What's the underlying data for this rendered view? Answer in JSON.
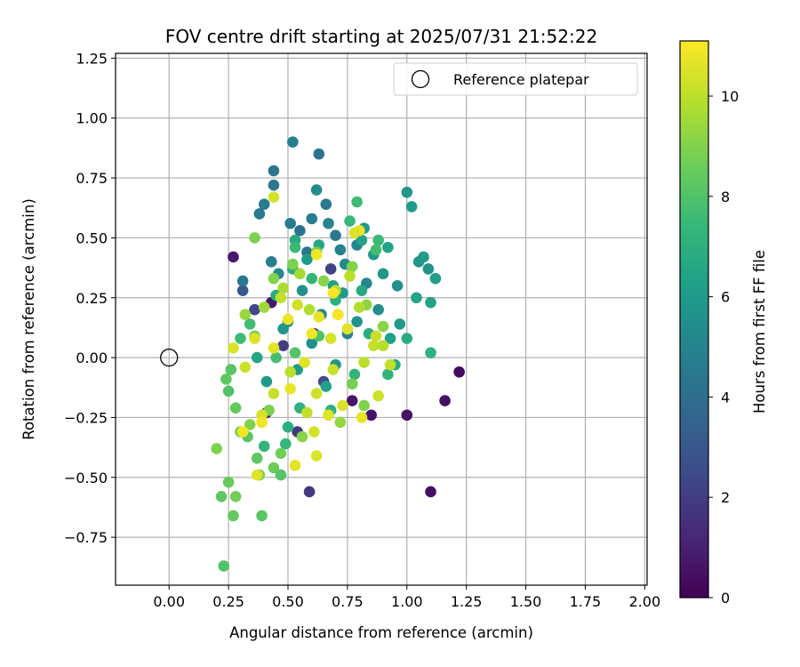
{
  "chart_data": {
    "type": "scatter",
    "title": "FOV centre drift starting at 2025/07/31 21:52:22",
    "xlabel": "Angular distance from reference (arcmin)",
    "ylabel": "Rotation from reference (arcmin)",
    "xlim": [
      -0.225,
      2.01
    ],
    "ylim": [
      -0.95,
      1.27
    ],
    "xticks": [
      0.0,
      0.25,
      0.5,
      0.75,
      1.0,
      1.25,
      1.5,
      1.75,
      2.0
    ],
    "xtick_labels": [
      "0.00",
      "0.25",
      "0.50",
      "0.75",
      "1.00",
      "1.25",
      "1.50",
      "1.75",
      "2.00"
    ],
    "yticks": [
      -0.75,
      -0.5,
      -0.25,
      0.0,
      0.25,
      0.5,
      0.75,
      1.0,
      1.25
    ],
    "ytick_labels": [
      "−0.75",
      "−0.50",
      "−0.25",
      "0.00",
      "0.25",
      "0.50",
      "0.75",
      "1.00",
      "1.25"
    ],
    "grid": true,
    "legend": {
      "position": "top-right",
      "entries": [
        "Reference platepar"
      ]
    },
    "reference_point": {
      "x": 0.0,
      "y": 0.0,
      "label": "Reference platepar"
    },
    "colorbar": {
      "label": "Hours from first FF file",
      "colormap": "viridis",
      "range": [
        0,
        11.1
      ],
      "ticks": [
        0,
        2,
        4,
        6,
        8,
        10
      ],
      "tick_labels": [
        "0",
        "2",
        "4",
        "6",
        "8",
        "10"
      ]
    },
    "points": [
      [
        0.27,
        0.42,
        0.8
      ],
      [
        0.41,
        -0.23,
        0.8
      ],
      [
        0.43,
        0.23,
        0.7
      ],
      [
        0.61,
        0.1,
        0.9
      ],
      [
        0.77,
        -0.18,
        0.7
      ],
      [
        0.85,
        -0.24,
        0.6
      ],
      [
        1.0,
        -0.24,
        0.6
      ],
      [
        1.1,
        -0.56,
        0.4
      ],
      [
        1.16,
        -0.18,
        0.5
      ],
      [
        1.22,
        -0.06,
        0.3
      ],
      [
        0.59,
        -0.56,
        1.9
      ],
      [
        0.54,
        -0.31,
        1.8
      ],
      [
        0.68,
        0.37,
        2.2
      ],
      [
        0.36,
        0.2,
        2.4
      ],
      [
        0.48,
        0.05,
        2.0
      ],
      [
        0.65,
        -0.1,
        2.5
      ],
      [
        0.31,
        0.28,
        3.1
      ],
      [
        0.63,
        0.85,
        4.2
      ],
      [
        0.44,
        0.78,
        4.3
      ],
      [
        0.44,
        0.72,
        4.4
      ],
      [
        0.4,
        0.64,
        4.6
      ],
      [
        0.38,
        0.6,
        4.5
      ],
      [
        0.52,
        0.9,
        4.8
      ],
      [
        0.6,
        0.58,
        4.7
      ],
      [
        0.51,
        0.56,
        4.6
      ],
      [
        0.66,
        0.64,
        4.5
      ],
      [
        0.55,
        0.53,
        4.1
      ],
      [
        0.7,
        0.51,
        4.4
      ],
      [
        0.62,
        0.7,
        5.4
      ],
      [
        0.43,
        0.4,
        4.8
      ],
      [
        0.58,
        0.44,
        4.3
      ],
      [
        0.72,
        0.45,
        4.9
      ],
      [
        0.31,
        0.32,
        4.5
      ],
      [
        0.46,
        0.35,
        5.2
      ],
      [
        0.67,
        0.56,
        5.0
      ],
      [
        0.5,
        0.15,
        5.1
      ],
      [
        0.56,
        0.28,
        5.6
      ],
      [
        0.74,
        0.39,
        5.3
      ],
      [
        0.79,
        0.47,
        5.0
      ],
      [
        0.83,
        0.31,
        5.2
      ],
      [
        0.64,
        0.18,
        4.9
      ],
      [
        0.75,
        0.1,
        5.0
      ],
      [
        0.88,
        0.2,
        5.5
      ],
      [
        0.9,
        0.35,
        5.8
      ],
      [
        0.96,
        0.3,
        5.6
      ],
      [
        1.0,
        0.69,
        5.9
      ],
      [
        1.02,
        0.63,
        6.0
      ],
      [
        1.05,
        0.4,
        5.8
      ],
      [
        1.07,
        0.42,
        6.1
      ],
      [
        1.09,
        0.37,
        5.7
      ],
      [
        1.12,
        0.33,
        6.2
      ],
      [
        0.92,
        0.46,
        6.4
      ],
      [
        0.86,
        0.43,
        5.9
      ],
      [
        0.82,
        0.54,
        6.1
      ],
      [
        0.81,
        0.49,
        6.3
      ],
      [
        0.97,
        0.14,
        5.9
      ],
      [
        0.93,
        0.08,
        6.2
      ],
      [
        1.04,
        0.25,
        6.5
      ],
      [
        1.1,
        0.23,
        6.4
      ],
      [
        1.0,
        0.08,
        6.8
      ],
      [
        0.73,
        0.27,
        6.0
      ],
      [
        0.79,
        0.15,
        5.7
      ],
      [
        0.69,
        0.3,
        6.3
      ],
      [
        0.53,
        0.49,
        6.6
      ],
      [
        0.58,
        0.41,
        6.1
      ],
      [
        0.48,
        0.12,
        5.9
      ],
      [
        0.6,
        0.06,
        5.6
      ],
      [
        0.7,
        -0.03,
        5.8
      ],
      [
        0.66,
        -0.12,
        6.2
      ],
      [
        0.54,
        -0.05,
        6.0
      ],
      [
        0.41,
        -0.1,
        6.1
      ],
      [
        0.37,
        0.0,
        6.5
      ],
      [
        0.45,
        0.26,
        6.8
      ],
      [
        0.52,
        0.37,
        6.9
      ],
      [
        0.63,
        0.47,
        6.6
      ],
      [
        0.7,
        0.24,
        7.0
      ],
      [
        0.81,
        0.28,
        6.7
      ],
      [
        0.84,
        0.1,
        6.9
      ],
      [
        0.92,
        -0.07,
        7.2
      ],
      [
        0.95,
        -0.03,
        6.8
      ],
      [
        1.1,
        0.02,
        7.1
      ],
      [
        0.78,
        -0.07,
        7.3
      ],
      [
        0.68,
        -0.22,
        7.0
      ],
      [
        0.55,
        -0.21,
        7.1
      ],
      [
        0.5,
        -0.29,
        6.9
      ],
      [
        0.49,
        -0.36,
        7.4
      ],
      [
        0.4,
        -0.37,
        7.2
      ],
      [
        0.53,
        0.46,
        7.5
      ],
      [
        0.6,
        0.33,
        7.3
      ],
      [
        0.76,
        0.57,
        7.4
      ],
      [
        0.79,
        0.65,
        7.6
      ],
      [
        0.88,
        0.49,
        7.5
      ],
      [
        0.87,
        0.45,
        7.7
      ],
      [
        0.71,
        0.18,
        7.9
      ],
      [
        0.63,
        0.09,
        8.0
      ],
      [
        0.53,
        0.02,
        8.1
      ],
      [
        0.45,
        0.0,
        7.8
      ],
      [
        0.34,
        0.14,
        7.7
      ],
      [
        0.3,
        0.08,
        7.6
      ],
      [
        0.26,
        -0.05,
        8.2
      ],
      [
        0.24,
        -0.09,
        8.3
      ],
      [
        0.25,
        -0.14,
        8.0
      ],
      [
        0.28,
        -0.21,
        8.4
      ],
      [
        0.33,
        -0.33,
        8.2
      ],
      [
        0.37,
        -0.42,
        8.3
      ],
      [
        0.44,
        -0.46,
        8.6
      ],
      [
        0.47,
        -0.49,
        8.1
      ],
      [
        0.38,
        -0.49,
        8.8
      ],
      [
        0.36,
        0.5,
        8.9
      ],
      [
        0.36,
        0.09,
        8.7
      ],
      [
        0.44,
        0.33,
        9.0
      ],
      [
        0.52,
        0.39,
        8.9
      ],
      [
        0.62,
        0.44,
        8.8
      ],
      [
        0.65,
        0.32,
        9.1
      ],
      [
        0.77,
        0.38,
        9.0
      ],
      [
        0.83,
        0.22,
        9.2
      ],
      [
        0.9,
        0.13,
        9.1
      ],
      [
        0.77,
        -0.11,
        8.8
      ],
      [
        0.82,
        -0.2,
        9.0
      ],
      [
        0.72,
        -0.27,
        9.3
      ],
      [
        0.56,
        -0.33,
        9.1
      ],
      [
        0.47,
        -0.4,
        8.7
      ],
      [
        0.42,
        -0.22,
        8.9
      ],
      [
        0.34,
        -0.28,
        9.0
      ],
      [
        0.3,
        -0.31,
        8.6
      ],
      [
        0.27,
        -0.66,
        8.4
      ],
      [
        0.39,
        -0.66,
        8.2
      ],
      [
        0.22,
        -0.58,
        8.3
      ],
      [
        0.25,
        -0.52,
        8.5
      ],
      [
        0.28,
        -0.58,
        8.7
      ],
      [
        0.2,
        -0.38,
        8.9
      ],
      [
        0.23,
        -0.87,
        8.0
      ],
      [
        0.32,
        0.18,
        9.4
      ],
      [
        0.4,
        0.21,
        9.5
      ],
      [
        0.48,
        0.29,
        9.7
      ],
      [
        0.55,
        0.35,
        9.6
      ],
      [
        0.59,
        0.2,
        9.8
      ],
      [
        0.7,
        0.28,
        9.9
      ],
      [
        0.76,
        0.34,
        10.0
      ],
      [
        0.8,
        0.21,
        9.8
      ],
      [
        0.86,
        0.05,
        10.1
      ],
      [
        0.9,
        0.05,
        9.9
      ],
      [
        0.82,
        -0.02,
        10.0
      ],
      [
        0.69,
        -0.05,
        10.2
      ],
      [
        0.62,
        -0.15,
        10.3
      ],
      [
        0.58,
        -0.23,
        10.1
      ],
      [
        0.51,
        -0.06,
        10.0
      ],
      [
        0.44,
        -0.15,
        10.2
      ],
      [
        0.39,
        -0.24,
        10.4
      ],
      [
        0.32,
        -0.04,
        10.3
      ],
      [
        0.27,
        0.04,
        10.5
      ],
      [
        0.36,
        0.08,
        10.6
      ],
      [
        0.44,
        0.04,
        10.7
      ],
      [
        0.5,
        0.16,
        10.8
      ],
      [
        0.6,
        0.1,
        10.9
      ],
      [
        0.63,
        0.17,
        10.7
      ],
      [
        0.71,
        0.18,
        11.0
      ],
      [
        0.75,
        0.12,
        10.6
      ],
      [
        0.8,
        0.53,
        10.8
      ],
      [
        0.78,
        0.52,
        10.5
      ],
      [
        0.44,
        0.67,
        10.4
      ],
      [
        0.62,
        0.43,
        10.9
      ],
      [
        0.69,
        0.27,
        11.0
      ],
      [
        0.57,
        -0.02,
        10.6
      ],
      [
        0.51,
        -0.13,
        10.8
      ],
      [
        0.39,
        -0.27,
        10.9
      ],
      [
        0.31,
        -0.31,
        11.0
      ],
      [
        0.37,
        -0.49,
        10.6
      ],
      [
        0.53,
        -0.45,
        10.7
      ],
      [
        0.62,
        -0.41,
        10.5
      ],
      [
        0.61,
        -0.31,
        10.4
      ],
      [
        0.67,
        -0.24,
        10.6
      ],
      [
        0.73,
        -0.2,
        10.5
      ],
      [
        0.81,
        -0.25,
        10.7
      ],
      [
        0.88,
        -0.16,
        10.3
      ],
      [
        0.93,
        -0.03,
        10.1
      ],
      [
        0.87,
        0.09,
        10.2
      ],
      [
        0.68,
        0.08,
        10.4
      ],
      [
        0.54,
        0.22,
        10.3
      ],
      [
        0.47,
        0.25,
        10.1
      ]
    ]
  }
}
